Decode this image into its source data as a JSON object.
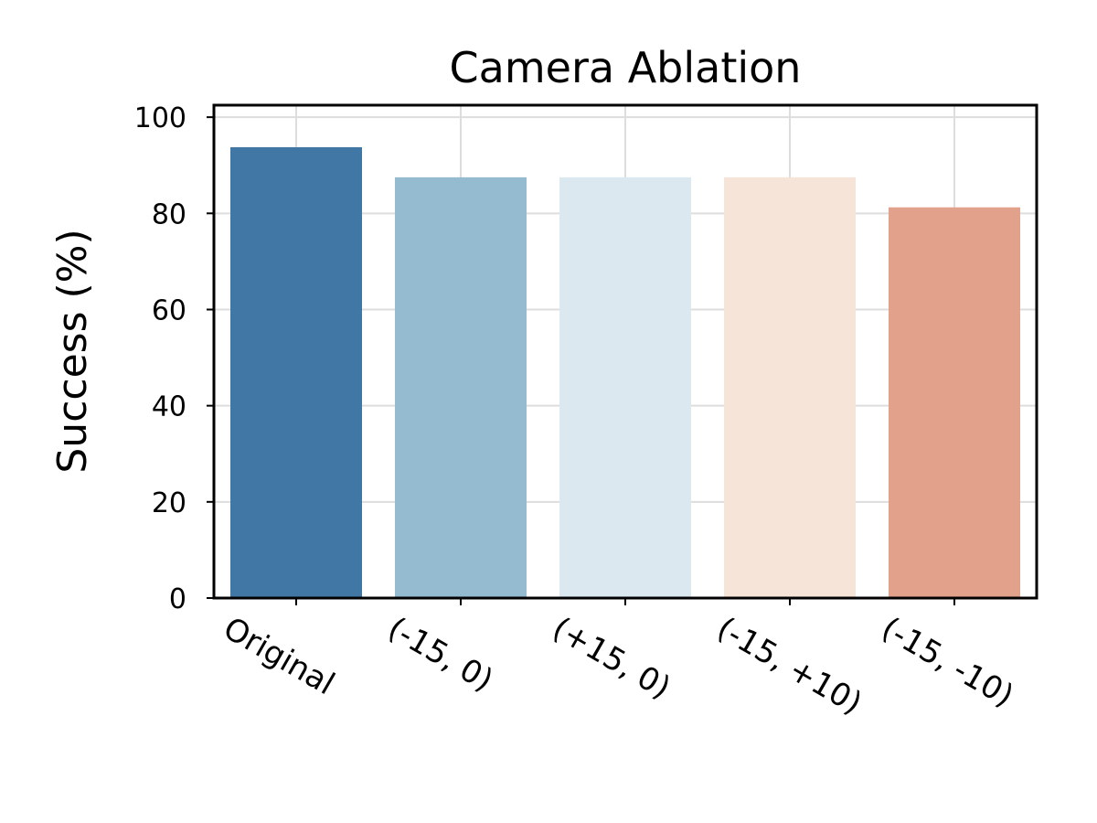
{
  "chart_data": {
    "type": "bar",
    "title": "Camera Ablation",
    "xlabel": "",
    "ylabel": "Success (%)",
    "categories": [
      "Original",
      "(-15, 0)",
      "(+15, 0)",
      "(-15, +10)",
      "(-15, -10)"
    ],
    "values": [
      93.75,
      87.5,
      87.5,
      87.5,
      81.25
    ],
    "colors": [
      "#4177a4",
      "#94bbd0",
      "#dce8ef",
      "#f6e4d9",
      "#e2a18a"
    ],
    "ylim": [
      0,
      102.5
    ],
    "yticks": [
      0,
      20,
      40,
      60,
      80,
      100
    ],
    "grid": true,
    "legend": "none"
  }
}
